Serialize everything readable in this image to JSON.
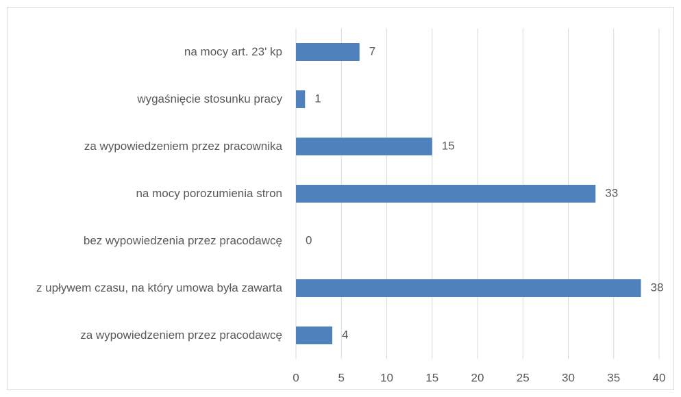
{
  "chart_data": {
    "type": "bar",
    "orientation": "horizontal",
    "categories": [
      "na mocy art. 23' kp",
      "wygaśnięcie stosunku pracy",
      "za wypowiedzeniem przez pracownika",
      "na mocy porozumienia stron",
      "bez  wypowiedzenia przez pracodawcę",
      "z upływem czasu, na który umowa była zawarta",
      "za wypowiedzeniem przez pracodawcę"
    ],
    "values": [
      7,
      1,
      15,
      33,
      0,
      38,
      4
    ],
    "color": "#4f81bd",
    "xlim": [
      0,
      40
    ],
    "xticks": [
      0,
      5,
      10,
      15,
      20,
      25,
      30,
      35,
      40
    ],
    "grid": true
  }
}
